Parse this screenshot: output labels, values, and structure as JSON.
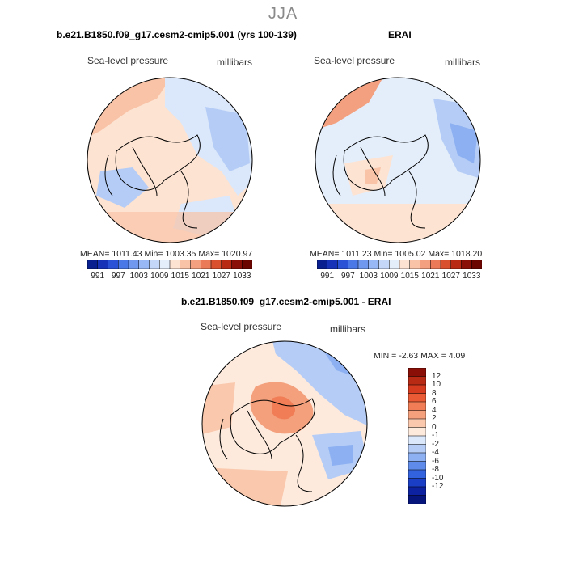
{
  "figure": {
    "season": "JJA"
  },
  "panels": {
    "model": {
      "title": "b.e21.B1850.f09_g17.cesm2-cmip5.001 (yrs 100-139)",
      "variable": "Sea-level pressure",
      "units": "millibars",
      "stats": "MEAN= 1011.43   Min= 1003.35   Max= 1020.97"
    },
    "obs": {
      "title": "ERAI",
      "variable": "Sea-level pressure",
      "units": "millibars",
      "stats": "MEAN= 1011.23   Min= 1005.02   Max= 1018.20"
    },
    "diff": {
      "title": "b.e21.B1850.f09_g17.cesm2-cmip5.001 - ERAI",
      "variable": "Sea-level pressure",
      "units": "millibars",
      "stats": "MIN =   -2.63  MAX =    4.09"
    }
  },
  "colorbar_abs": {
    "labels": [
      "991",
      "997",
      "1003",
      "1009",
      "1015",
      "1021",
      "1027",
      "1033"
    ],
    "colors": [
      "#08208f",
      "#1633b7",
      "#2a52d6",
      "#4a78e6",
      "#6f98ee",
      "#98b8f5",
      "#c4d7f8",
      "#e4eefb",
      "#fde3d2",
      "#f8c3a7",
      "#f2a07f",
      "#ea7a58",
      "#d9502f",
      "#b92a15",
      "#8a0f06",
      "#6a0500"
    ]
  },
  "colorbar_diff": {
    "labels": [
      "12",
      "10",
      "8",
      "6",
      "4",
      "2",
      "0",
      "-1",
      "-2",
      "-4",
      "-6",
      "-8",
      "-10",
      "-12"
    ],
    "colors": [
      "#8a0f06",
      "#b92a15",
      "#d63b20",
      "#ea5b35",
      "#f07d55",
      "#f4a07c",
      "#fac9ad",
      "#fdeadd",
      "#dbe7fa",
      "#b5cdf6",
      "#8cb0f1",
      "#5f8ceb",
      "#3362de",
      "#1b3ec6",
      "#0c22a0",
      "#06157c"
    ]
  }
}
